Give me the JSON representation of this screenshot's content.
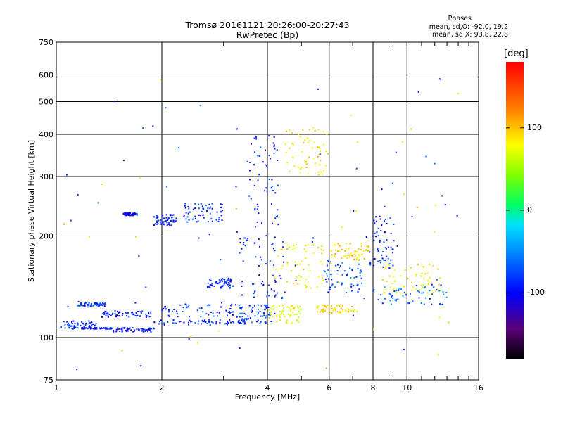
{
  "chart_data": {
    "type": "scatter",
    "title": "Tromsø 20161121 20:26:00-20:27:43",
    "subtitle": "RwPretec (Bp)",
    "xlabel": "Frequency [MHz]",
    "ylabel": "Stationary phase Virtual Height [km]",
    "x_scale": "log",
    "y_scale": "log",
    "xlim": [
      1,
      16
    ],
    "ylim": [
      75,
      750
    ],
    "x_ticks": [
      1,
      2,
      4,
      6,
      8,
      10,
      16
    ],
    "y_ticks": [
      75,
      100,
      200,
      300,
      400,
      500,
      600,
      750
    ],
    "grid": true,
    "phase_stats": {
      "heading": "Phases",
      "line_o": "mean, sd,O: -92.0, 19.2",
      "line_x": "mean, sd,X:  93.8, 22.8"
    },
    "colorbar": {
      "unit": "[deg]",
      "ticks": [
        100,
        0,
        -100
      ],
      "range": [
        -180,
        180
      ],
      "colormap": "rainbow"
    },
    "trace_groups": [
      {
        "x": [
          1.03,
          1.3
        ],
        "y": [
          106,
          112
        ],
        "phase": -100
      },
      {
        "x": [
          1.15,
          1.38
        ],
        "y": [
          124,
          127
        ],
        "phase": -95
      },
      {
        "x": [
          1.18,
          1.45
        ],
        "y": [
          106,
          107
        ],
        "phase": -105
      },
      {
        "x": [
          1.45,
          1.9
        ],
        "y": [
          104,
          107
        ],
        "phase": -110
      },
      {
        "x": [
          1.35,
          1.9
        ],
        "y": [
          115,
          120
        ],
        "phase": -100
      },
      {
        "x": [
          1.9,
          3.5
        ],
        "y": [
          109,
          113
        ],
        "phase": -100
      },
      {
        "x": [
          2.0,
          3.5
        ],
        "y": [
          115,
          126
        ],
        "phase": -95
      },
      {
        "x": [
          1.55,
          1.7
        ],
        "y": [
          230,
          234
        ],
        "phase": -110
      },
      {
        "x": [
          1.9,
          2.2
        ],
        "y": [
          215,
          232
        ],
        "phase": -100
      },
      {
        "x": [
          2.3,
          3.0
        ],
        "y": [
          220,
          250
        ],
        "phase": -95
      },
      {
        "x": [
          2.7,
          3.2
        ],
        "y": [
          140,
          150
        ],
        "phase": -100
      },
      {
        "x": [
          3.3,
          4.2
        ],
        "y": [
          110,
          125
        ],
        "phase": -90
      },
      {
        "x": [
          3.3,
          4.5
        ],
        "y": [
          130,
          200
        ],
        "phase": -105
      },
      {
        "x": [
          3.5,
          4.3
        ],
        "y": [
          200,
          400
        ],
        "phase": -100
      },
      {
        "x": [
          4.0,
          5.0
        ],
        "y": [
          110,
          125
        ],
        "phase": 80
      },
      {
        "x": [
          4.2,
          5.8
        ],
        "y": [
          140,
          190
        ],
        "phase": 90
      },
      {
        "x": [
          4.5,
          6.0
        ],
        "y": [
          300,
          420
        ],
        "phase": 95
      },
      {
        "x": [
          5.5,
          7.2
        ],
        "y": [
          118,
          125
        ],
        "phase": 100
      },
      {
        "x": [
          5.8,
          7.5
        ],
        "y": [
          135,
          170
        ],
        "phase": -90
      },
      {
        "x": [
          6.0,
          7.8
        ],
        "y": [
          170,
          190
        ],
        "phase": 100
      },
      {
        "x": [
          7.8,
          9.2
        ],
        "y": [
          160,
          230
        ],
        "phase": -100
      },
      {
        "x": [
          8.5,
          12.5
        ],
        "y": [
          135,
          165
        ],
        "phase": 90
      },
      {
        "x": [
          8.0,
          13.0
        ],
        "y": [
          125,
          145
        ],
        "phase": -80
      }
    ]
  }
}
